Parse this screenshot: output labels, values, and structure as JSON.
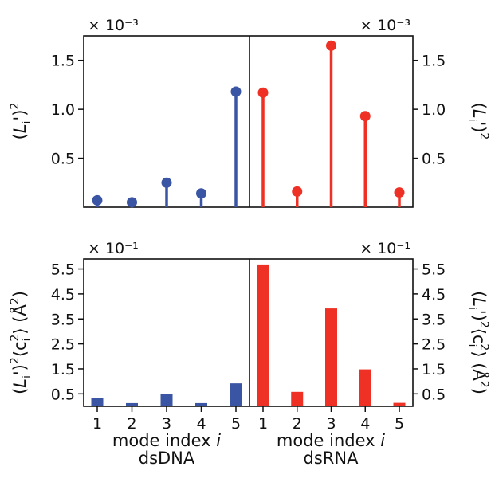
{
  "chart_data": [
    {
      "type": "stem",
      "panel": "top-left",
      "side": "left",
      "color": "#3a55a4",
      "x": [
        1,
        2,
        3,
        4,
        5
      ],
      "values": [
        0.07,
        0.05,
        0.25,
        0.14,
        1.18
      ],
      "ylabel": "(L_i')^2",
      "multiplier": "× 10⁻³",
      "ylim": [
        0,
        1.75
      ],
      "yticks": [
        "0.5",
        "1.0",
        "1.5"
      ]
    },
    {
      "type": "stem",
      "panel": "top-right",
      "side": "right",
      "color": "#ee3124",
      "x": [
        1,
        2,
        3,
        4,
        5
      ],
      "values": [
        1.17,
        0.16,
        1.65,
        0.93,
        0.15
      ],
      "ylabel": "(L_i')^2",
      "multiplier": "× 10⁻³",
      "ylim": [
        0,
        1.75
      ],
      "yticks": [
        "0.5",
        "1.0",
        "1.5"
      ]
    },
    {
      "type": "bar",
      "panel": "bottom-left",
      "side": "left",
      "color": "#3a55a4",
      "categories": [
        "1",
        "2",
        "3",
        "4",
        "5"
      ],
      "values": [
        0.33,
        0.13,
        0.48,
        0.13,
        0.92
      ],
      "ylabel": "(L_i')^2 ⟨c_i^2⟩ (Å^2)",
      "xlabel": "mode index i",
      "group": "dsDNA",
      "multiplier": "× 10⁻¹",
      "ylim": [
        0,
        5.9
      ],
      "yticks": [
        "0.5",
        "1.5",
        "2.5",
        "3.5",
        "4.5",
        "5.5"
      ]
    },
    {
      "type": "bar",
      "panel": "bottom-right",
      "side": "right",
      "color": "#ee3124",
      "categories": [
        "1",
        "2",
        "3",
        "4",
        "5"
      ],
      "values": [
        5.68,
        0.58,
        3.92,
        1.48,
        0.14
      ],
      "ylabel": "(L_i')^2 ⟨c_i^2⟩ (Å^2)",
      "xlabel": "mode index i",
      "group": "dsRNA",
      "multiplier": "× 10⁻¹",
      "ylim": [
        0,
        5.9
      ],
      "yticks": [
        "0.5",
        "1.5",
        "2.5",
        "3.5",
        "4.5",
        "5.5"
      ]
    }
  ]
}
